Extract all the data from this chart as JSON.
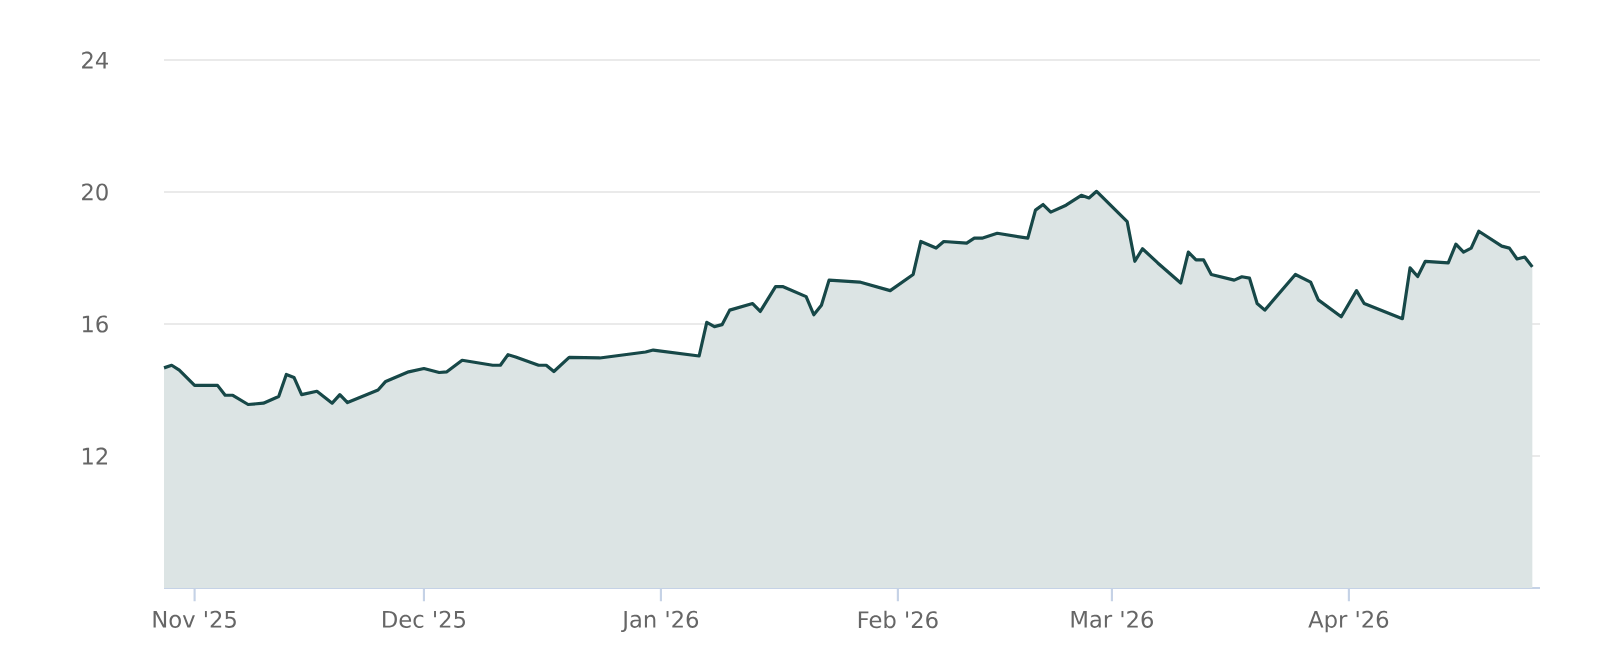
{
  "chart_data": {
    "type": "area",
    "x": [
      "2025-10-28",
      "2025-10-29",
      "2025-10-30",
      "2025-11-01",
      "2025-11-04",
      "2025-11-05",
      "2025-11-06",
      "2025-11-08",
      "2025-11-10",
      "2025-11-12",
      "2025-11-13",
      "2025-11-14",
      "2025-11-15",
      "2025-11-17",
      "2025-11-19",
      "2025-11-20",
      "2025-11-21",
      "2025-11-25",
      "2025-11-26",
      "2025-11-29",
      "2025-12-01",
      "2025-12-03",
      "2025-12-04",
      "2025-12-06",
      "2025-12-10",
      "2025-12-11",
      "2025-12-12",
      "2025-12-13",
      "2025-12-16",
      "2025-12-17",
      "2025-12-18",
      "2025-12-20",
      "2025-12-24",
      "2025-12-30",
      "2025-12-31",
      "2026-01-06",
      "2026-01-07",
      "2026-01-08",
      "2026-01-09",
      "2026-01-10",
      "2026-01-13",
      "2026-01-14",
      "2026-01-16",
      "2026-01-17",
      "2026-01-20",
      "2026-01-21",
      "2026-01-22",
      "2026-01-23",
      "2026-01-27",
      "2026-01-31",
      "2026-02-03",
      "2026-02-04",
      "2026-02-06",
      "2026-02-07",
      "2026-02-10",
      "2026-02-11",
      "2026-02-12",
      "2026-02-14",
      "2026-02-18",
      "2026-02-19",
      "2026-02-20",
      "2026-02-21",
      "2026-02-23",
      "2026-02-25",
      "2026-02-26",
      "2026-02-27",
      "2026-03-03",
      "2026-03-04",
      "2026-03-05",
      "2026-03-07",
      "2026-03-10",
      "2026-03-11",
      "2026-03-12",
      "2026-03-13",
      "2026-03-14",
      "2026-03-17",
      "2026-03-18",
      "2026-03-19",
      "2026-03-20",
      "2026-03-21",
      "2026-03-25",
      "2026-03-27",
      "2026-03-28",
      "2026-03-31",
      "2026-04-02",
      "2026-04-03",
      "2026-04-08",
      "2026-04-09",
      "2026-04-10",
      "2026-04-11",
      "2026-04-14",
      "2026-04-15",
      "2026-04-16",
      "2026-04-17",
      "2026-04-18",
      "2026-04-21",
      "2026-04-22",
      "2026-04-23",
      "2026-04-24",
      "2026-04-25"
    ],
    "series": [
      {
        "color": "#174848",
        "values": [
          14.67,
          14.75,
          14.6,
          14.14,
          14.14,
          13.84,
          13.84,
          13.56,
          13.6,
          13.8,
          14.47,
          14.38,
          13.86,
          13.96,
          13.6,
          13.86,
          13.62,
          14.0,
          14.26,
          14.55,
          14.65,
          14.53,
          14.55,
          14.9,
          14.75,
          14.75,
          15.07,
          15.0,
          14.75,
          14.75,
          14.56,
          14.99,
          14.97,
          15.15,
          15.21,
          15.03,
          16.05,
          15.92,
          15.98,
          16.42,
          16.62,
          16.38,
          17.13,
          17.13,
          16.83,
          16.28,
          16.57,
          17.33,
          17.27,
          17.01,
          17.5,
          18.5,
          18.3,
          18.5,
          18.45,
          18.6,
          18.6,
          18.75,
          18.6,
          19.45,
          19.62,
          19.39,
          19.6,
          19.9,
          19.82,
          20.02,
          19.1,
          17.9,
          18.28,
          17.85,
          17.24,
          18.18,
          17.94,
          17.94,
          17.5,
          17.33,
          17.43,
          17.39,
          16.62,
          16.42,
          17.5,
          17.27,
          16.73,
          16.22,
          17.01,
          16.62,
          16.16,
          17.7,
          17.44,
          17.9,
          17.85,
          18.42,
          18.18,
          18.3,
          18.81,
          18.36,
          18.3,
          17.97,
          18.03,
          17.73
        ]
      }
    ],
    "xlim": [
      "2025-10-28",
      "2026-04-26"
    ],
    "xticks": [
      {
        "value": "2025-11-01",
        "label": "Nov '25"
      },
      {
        "value": "2025-12-01",
        "label": "Dec '25"
      },
      {
        "value": "2026-01-01",
        "label": "Jan '26"
      },
      {
        "value": "2026-02-01",
        "label": "Feb '26"
      },
      {
        "value": "2026-03-01",
        "label": "Mar '26"
      },
      {
        "value": "2026-04-01",
        "label": "Apr '26"
      }
    ],
    "ylim": [
      8,
      24
    ],
    "yticks": [
      12,
      16,
      20,
      24
    ],
    "grid": "y"
  }
}
